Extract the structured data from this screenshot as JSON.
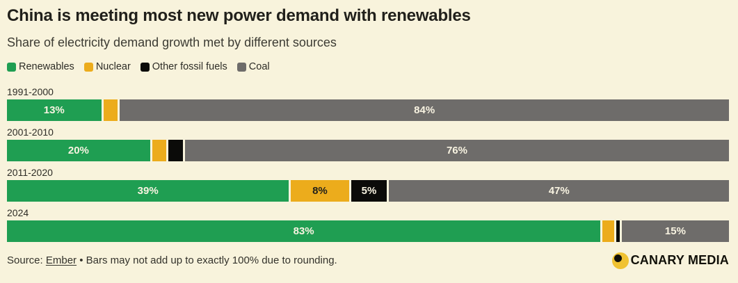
{
  "page_bg": "#f8f3dc",
  "header": {
    "title": "China is meeting most new power demand with renewables",
    "subtitle": "Share of electricity demand growth met by different sources"
  },
  "legend": [
    {
      "label": "Renewables",
      "color": "#1f9e52"
    },
    {
      "label": "Nuclear",
      "color": "#ecac1c"
    },
    {
      "label": "Other fossil fuels",
      "color": "#0b0b09"
    },
    {
      "label": "Coal",
      "color": "#6e6c6a"
    }
  ],
  "chart_data": {
    "type": "bar",
    "orientation": "horizontal",
    "stacked": true,
    "unit": "%",
    "title": "China is meeting most new power demand with renewables",
    "subtitle": "Share of electricity demand growth met by different sources",
    "xlim": [
      0,
      100
    ],
    "grid": false,
    "legend_position": "top",
    "categories": [
      "1991-2000",
      "2001-2010",
      "2011-2020",
      "2024"
    ],
    "series": [
      {
        "name": "Renewables",
        "color": "#1f9e52",
        "label_text_color": "#f8f3e1",
        "values": [
          13,
          20,
          39,
          83
        ]
      },
      {
        "name": "Nuclear",
        "color": "#ecac1c",
        "label_text_color": "#21201b",
        "values": [
          2,
          2,
          8,
          1.6
        ]
      },
      {
        "name": "Other fossil fuels",
        "color": "#0b0b09",
        "label_text_color": "#f8f3e1",
        "values": [
          0,
          2,
          5,
          0.5
        ]
      },
      {
        "name": "Coal",
        "color": "#6e6c6a",
        "label_text_color": "#f8f3e1",
        "values": [
          84,
          76,
          47,
          15
        ]
      }
    ],
    "shown_labels": [
      [
        "13%",
        "",
        "",
        "84%"
      ],
      [
        "20%",
        "",
        "",
        "76%"
      ],
      [
        "39%",
        "8%",
        "5%",
        "47%"
      ],
      [
        "83%",
        "",
        "",
        "15%"
      ]
    ]
  },
  "footer": {
    "source_prefix": "Source: ",
    "source_link": "Ember",
    "note": " • Bars may not add up to exactly 100% due to rounding.",
    "brand": "CANARY MEDIA",
    "brand_color": "#f0c232"
  }
}
